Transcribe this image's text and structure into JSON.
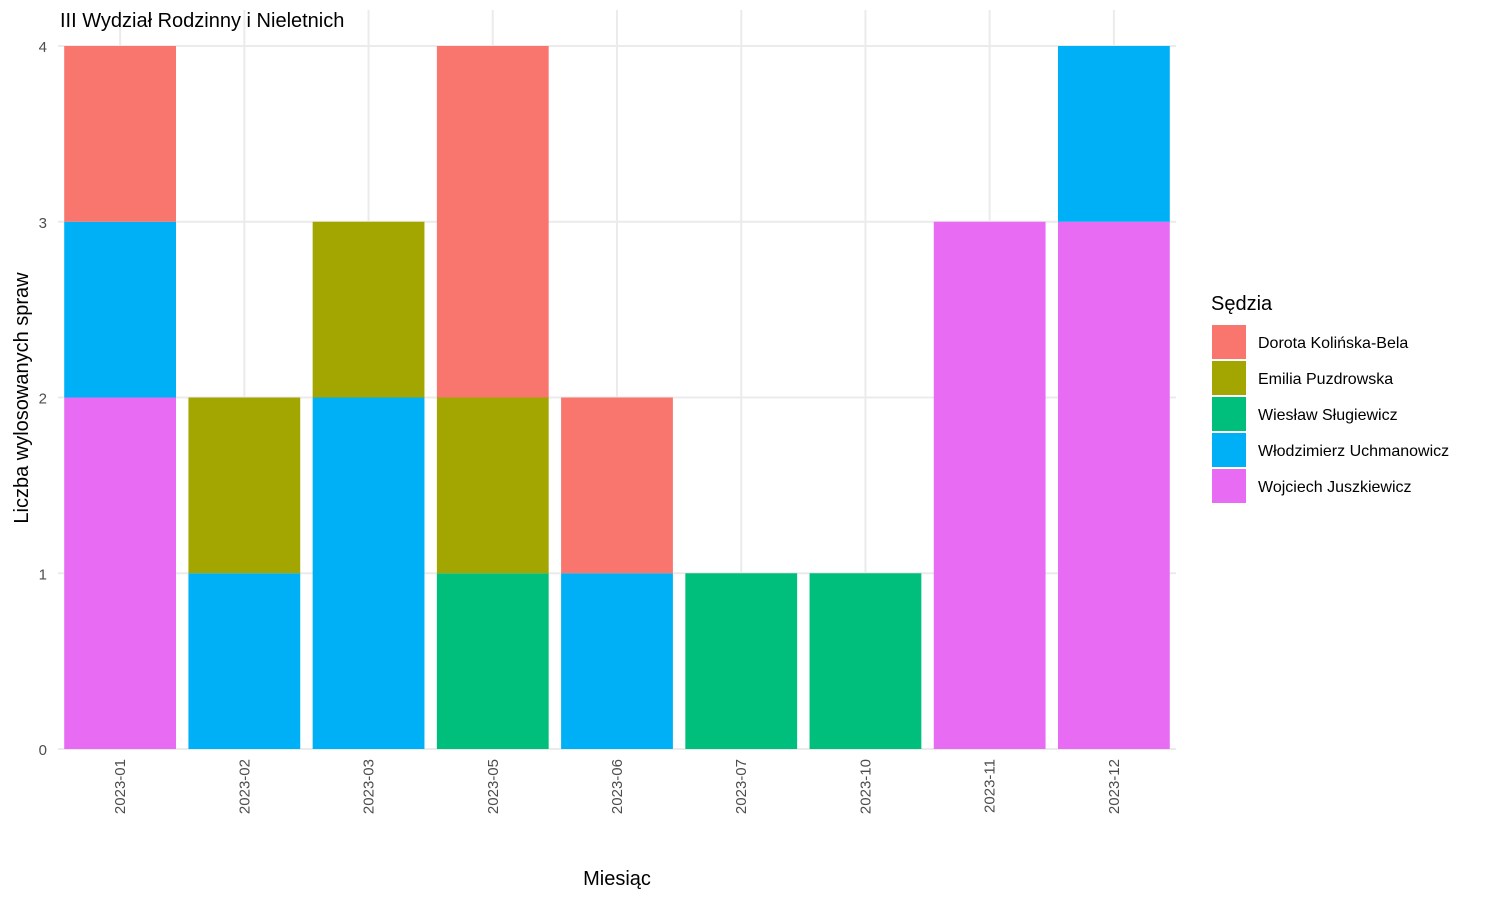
{
  "chart_data": {
    "type": "bar",
    "stacked": true,
    "title": "III Wydział Rodzinny i Nieletnich",
    "xlabel": "Miesiąc",
    "ylabel": "Liczba wylosowanych spraw",
    "ylim": [
      0,
      4
    ],
    "yticks": [
      0,
      1,
      2,
      3,
      4
    ],
    "grid": true,
    "legend_title": "Sędzia",
    "legend_position": "right",
    "categories": [
      "2023-01",
      "2023-02",
      "2023-03",
      "2023-05",
      "2023-06",
      "2023-07",
      "2023-10",
      "2023-11",
      "2023-12"
    ],
    "series": [
      {
        "name": "Wojciech Juszkiewicz",
        "color": "#e76bf3",
        "values": [
          2,
          0,
          0,
          0,
          0,
          0,
          0,
          3,
          3
        ]
      },
      {
        "name": "Włodzimierz Uchmanowicz",
        "color": "#00b0f6",
        "values": [
          1,
          1,
          2,
          0,
          1,
          0,
          0,
          0,
          1
        ]
      },
      {
        "name": "Wiesław Sługiewicz",
        "color": "#00bf7d",
        "values": [
          0,
          0,
          0,
          1,
          0,
          1,
          1,
          0,
          0
        ]
      },
      {
        "name": "Emilia Puzdrowska",
        "color": "#a3a500",
        "values": [
          0,
          1,
          1,
          1,
          0,
          0,
          0,
          0,
          0
        ]
      },
      {
        "name": "Dorota Kolińska-Bela",
        "color": "#f8766d",
        "values": [
          1,
          0,
          0,
          2,
          1,
          0,
          0,
          0,
          0
        ]
      }
    ],
    "legend_order": [
      "Dorota Kolińska-Bela",
      "Emilia Puzdrowska",
      "Wiesław Sługiewicz",
      "Włodzimierz Uchmanowicz",
      "Wojciech Juszkiewicz"
    ]
  }
}
